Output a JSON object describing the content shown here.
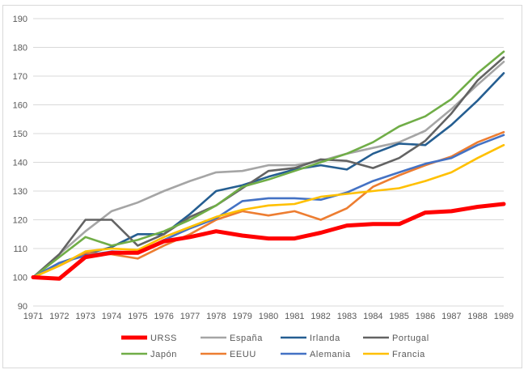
{
  "chart_data": {
    "type": "line",
    "title": "",
    "xlabel": "",
    "ylabel": "",
    "x": [
      "1971",
      "1972",
      "1973",
      "1974",
      "1975",
      "1976",
      "1977",
      "1978",
      "1979",
      "1980",
      "1981",
      "1982",
      "1983",
      "1984",
      "1985",
      "1986",
      "1987",
      "1988",
      "1989"
    ],
    "ylim": [
      90,
      190
    ],
    "yticks": [
      "90",
      "100",
      "110",
      "120",
      "130",
      "140",
      "150",
      "160",
      "170",
      "180",
      "190"
    ],
    "grid": true,
    "legend_position": "bottom",
    "series": [
      {
        "name": "URSS",
        "color": "#ff0000",
        "width": "bold",
        "values": [
          100,
          99.5,
          107,
          108.5,
          108.5,
          112.5,
          114,
          116,
          114.5,
          113.5,
          113.5,
          115.5,
          118,
          118.5,
          118.5,
          122.5,
          123,
          124.5,
          125.5
        ]
      },
      {
        "name": "España",
        "color": "#a5a5a5",
        "values": [
          100,
          108,
          116,
          123,
          126,
          130,
          133.5,
          136.5,
          137,
          139,
          139,
          140.5,
          143,
          145,
          147,
          151,
          158.5,
          167,
          175
        ]
      },
      {
        "name": "Irlanda",
        "color": "#255e91",
        "values": [
          100,
          105,
          108,
          110.5,
          115,
          115,
          122,
          130,
          132,
          135,
          137.5,
          139,
          137.5,
          143,
          146.5,
          146,
          153,
          161.5,
          171
        ]
      },
      {
        "name": "Portugal",
        "color": "#636363",
        "values": [
          100,
          108,
          120,
          120,
          111,
          115,
          121,
          125,
          131,
          137,
          138,
          141,
          140.5,
          138,
          141.5,
          147.5,
          157,
          168.5,
          176.5
        ]
      },
      {
        "name": "Japón",
        "color": "#70ad47",
        "values": [
          100,
          107,
          114,
          111,
          113,
          116,
          120,
          125,
          131.5,
          134,
          137,
          140,
          143,
          147,
          152.5,
          156,
          162,
          171,
          178.5
        ]
      },
      {
        "name": "EEUU",
        "color": "#ed7d31",
        "values": [
          100,
          104,
          108.5,
          108,
          106.5,
          111,
          115,
          120,
          123,
          121.5,
          123,
          120,
          124,
          131.5,
          135.5,
          139,
          142,
          147,
          150.5
        ]
      },
      {
        "name": "Alemania",
        "color": "#4472c4",
        "values": [
          100,
          105,
          107.5,
          109,
          108.5,
          113,
          117,
          120.5,
          126.5,
          127.5,
          127.5,
          127,
          129.5,
          133.5,
          136.5,
          139.5,
          141.5,
          146,
          149.5
        ]
      },
      {
        "name": "Francia",
        "color": "#ffc000",
        "values": [
          100,
          104,
          109,
          110,
          109.5,
          114,
          117.5,
          121,
          123.5,
          125,
          125.5,
          128,
          129,
          130,
          131,
          133.5,
          136.5,
          141.5,
          146
        ]
      }
    ]
  }
}
